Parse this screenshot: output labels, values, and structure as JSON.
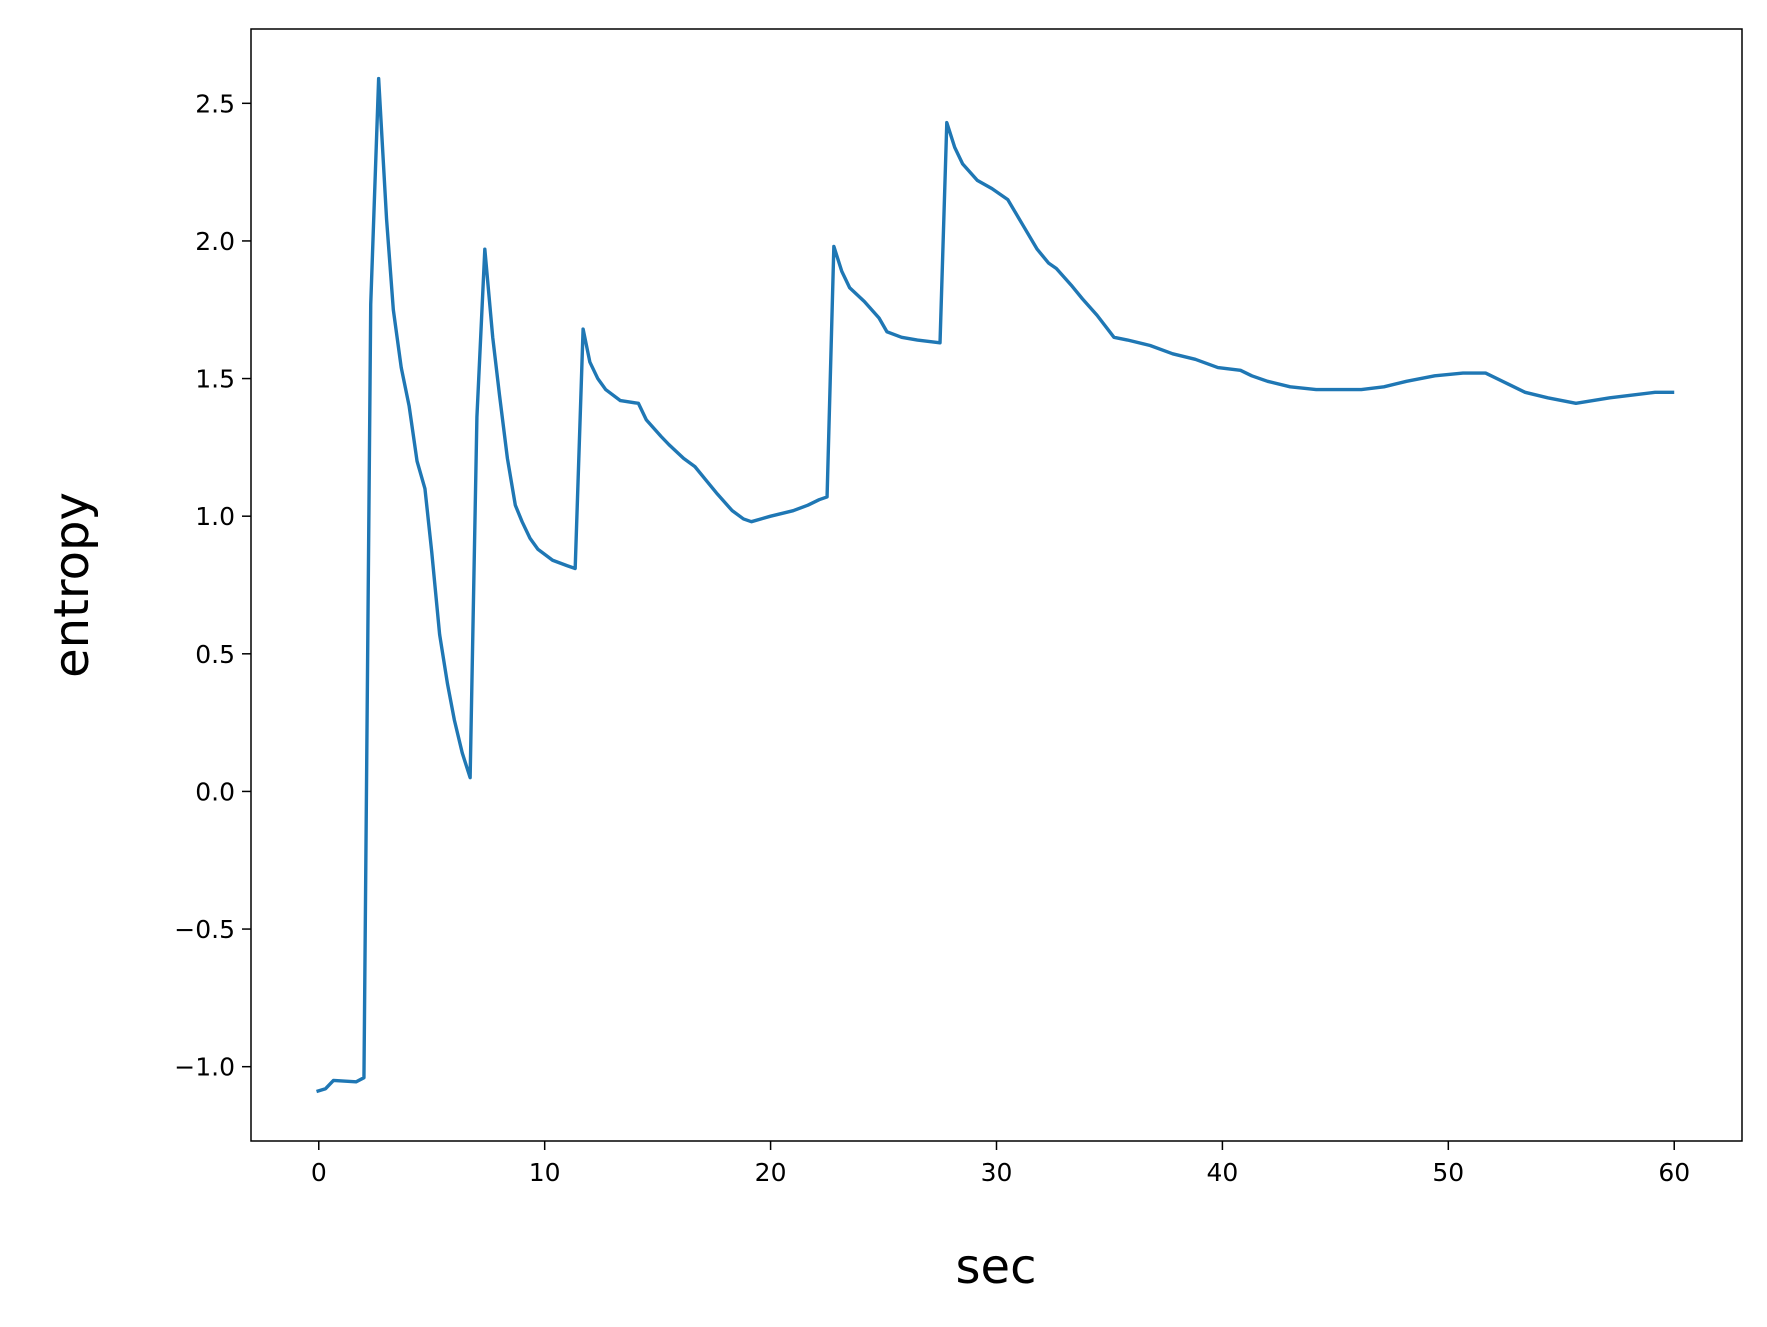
{
  "chart_data": {
    "type": "line",
    "x_label": "sec",
    "y_label": "entropy",
    "x": [
      -0.1,
      0.3,
      0.65,
      1.65,
      2.0,
      2.3,
      2.65,
      3.0,
      3.3,
      3.65,
      4.0,
      4.35,
      4.7,
      5.0,
      5.35,
      5.7,
      6.0,
      6.35,
      6.7,
      7.0,
      7.35,
      7.7,
      8.0,
      8.35,
      8.7,
      9.0,
      9.35,
      9.7,
      10.35,
      11.0,
      11.35,
      11.7,
      12.0,
      12.35,
      12.7,
      13.35,
      14.15,
      14.5,
      15.15,
      15.5,
      16.15,
      16.65,
      17.15,
      17.65,
      18.3,
      18.8,
      19.15,
      20.0,
      21.0,
      21.65,
      22.15,
      22.5,
      22.8,
      23.15,
      23.5,
      24.15,
      24.8,
      25.15,
      25.8,
      26.5,
      27.5,
      27.8,
      28.15,
      28.5,
      29.15,
      29.8,
      30.5,
      31.15,
      31.8,
      32.3,
      32.65,
      33.3,
      33.8,
      34.45,
      35.2,
      35.8,
      36.8,
      37.8,
      38.8,
      39.8,
      40.8,
      41.3,
      42.0,
      43.0,
      44.15,
      45.15,
      46.15,
      47.15,
      48.15,
      49.4,
      50.65,
      51.65,
      52.65,
      53.4,
      54.4,
      55.65,
      57.15,
      58.15,
      59.15,
      60.0
    ],
    "series": [
      {
        "color": "#1f77b4",
        "values": [
          -1.09,
          -1.08,
          -1.05,
          -1.055,
          -1.04,
          1.77,
          2.59,
          2.08,
          1.75,
          1.54,
          1.4,
          1.2,
          1.1,
          0.87,
          0.57,
          0.39,
          0.26,
          0.14,
          0.05,
          1.36,
          1.97,
          1.65,
          1.44,
          1.21,
          1.04,
          0.98,
          0.92,
          0.88,
          0.84,
          0.82,
          0.81,
          1.68,
          1.56,
          1.5,
          1.46,
          1.42,
          1.41,
          1.35,
          1.29,
          1.26,
          1.21,
          1.18,
          1.13,
          1.08,
          1.02,
          0.99,
          0.98,
          1.0,
          1.02,
          1.04,
          1.06,
          1.07,
          1.98,
          1.89,
          1.83,
          1.78,
          1.72,
          1.67,
          1.65,
          1.64,
          1.63,
          2.43,
          2.34,
          2.28,
          2.22,
          2.19,
          2.15,
          2.06,
          1.97,
          1.92,
          1.9,
          1.84,
          1.79,
          1.73,
          1.65,
          1.64,
          1.62,
          1.59,
          1.57,
          1.54,
          1.53,
          1.51,
          1.49,
          1.47,
          1.46,
          1.46,
          1.46,
          1.47,
          1.49,
          1.51,
          1.52,
          1.52,
          1.48,
          1.45,
          1.43,
          1.41,
          1.43,
          1.44,
          1.45,
          1.45
        ]
      }
    ],
    "xlim": [
      -3,
      63
    ],
    "xticks": [
      0,
      10,
      20,
      30,
      40,
      50,
      60
    ],
    "ylim": [
      -1.27,
      2.77
    ],
    "yticks": [
      {
        "value": -1.0,
        "label": "−1.0"
      },
      {
        "value": -0.5,
        "label": "−0.5"
      },
      {
        "value": 0.0,
        "label": "0.0"
      },
      0.5,
      {
        "value": 1.0,
        "label": "1.0"
      },
      1.5,
      {
        "value": 2.0,
        "label": "2.0"
      },
      2.5
    ]
  }
}
